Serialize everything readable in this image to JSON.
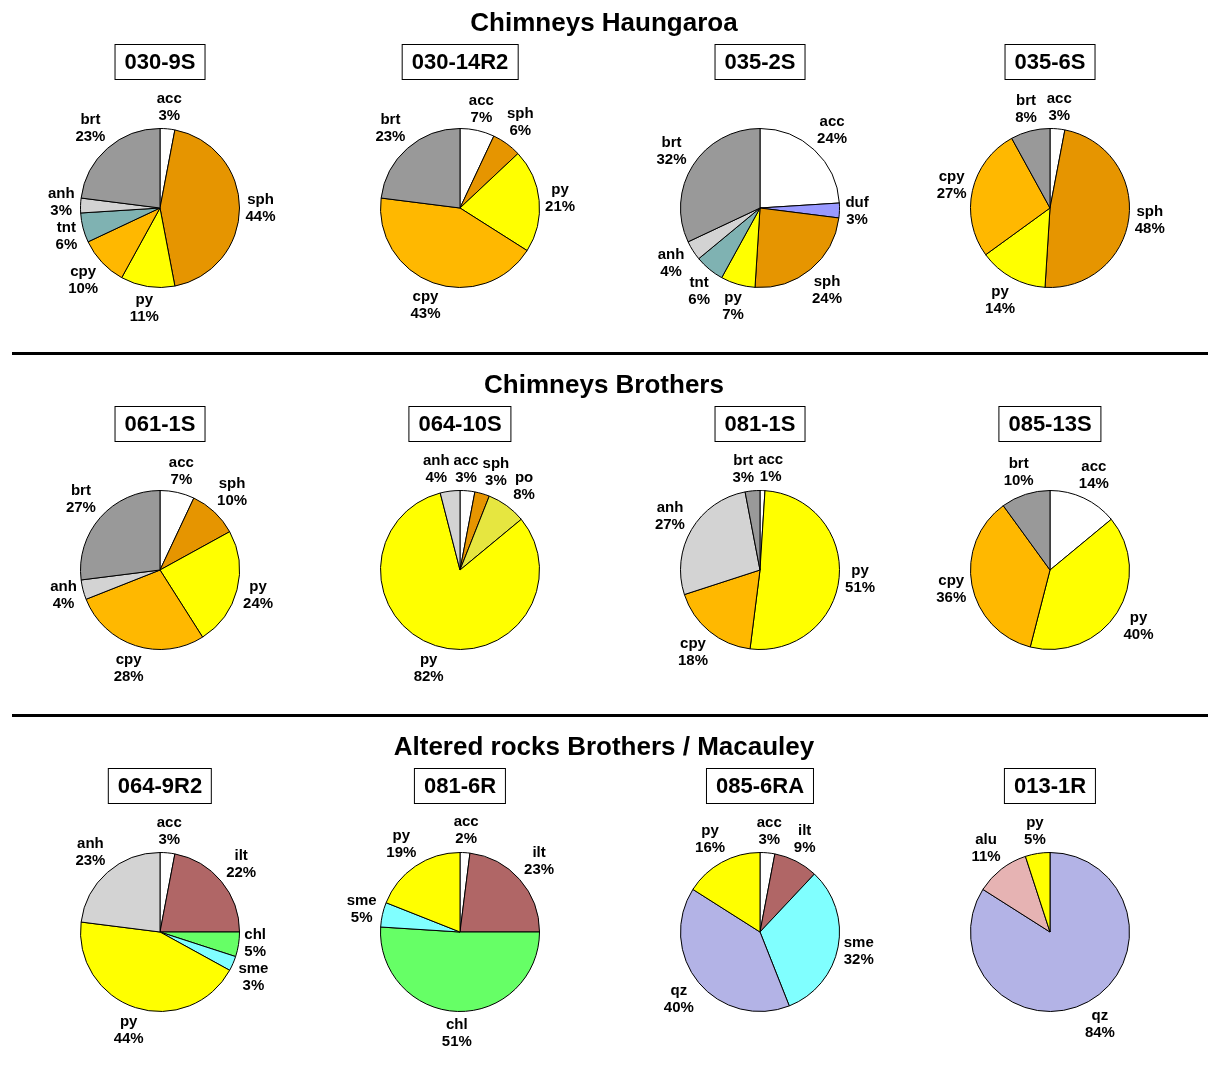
{
  "chart_data": [
    {
      "type": "pie",
      "title": "030-9S",
      "annotations": [
        "Chimneys Haungaroa"
      ],
      "categories": [
        "acc",
        "sph",
        "py",
        "cpy",
        "tnt",
        "anh",
        "brt"
      ],
      "values": [
        3,
        44,
        11,
        10,
        6,
        3,
        23
      ],
      "value_labels": [
        "3%",
        "44%",
        "11%",
        "10%",
        "6%",
        "3%",
        "23%"
      ],
      "colors": [
        "#ffffff",
        "#e69500",
        "#ffff00",
        "#ffb800",
        "#7fb2b2",
        "#d3d3d3",
        "#999999"
      ]
    },
    {
      "type": "pie",
      "title": "030-14R2",
      "categories": [
        "acc",
        "sph",
        "py",
        "cpy",
        "brt"
      ],
      "values": [
        7,
        6,
        21,
        43,
        23
      ],
      "value_labels": [
        "7%",
        "6%",
        "21%",
        "43%",
        "23%"
      ],
      "colors": [
        "#ffffff",
        "#e69500",
        "#ffff00",
        "#ffb800",
        "#999999"
      ]
    },
    {
      "type": "pie",
      "title": "035-2S",
      "categories": [
        "acc",
        "duf",
        "sph",
        "py",
        "tnt",
        "anh",
        "brt"
      ],
      "values": [
        24,
        3,
        24,
        7,
        6,
        4,
        32
      ],
      "value_labels": [
        "24%",
        "3%",
        "24%",
        "7%",
        "6%",
        "4%",
        "32%"
      ],
      "colors": [
        "#ffffff",
        "#9999ff",
        "#e69500",
        "#ffff00",
        "#7fb2b2",
        "#d3d3d3",
        "#999999"
      ]
    },
    {
      "type": "pie",
      "title": "035-6S",
      "categories": [
        "acc",
        "sph",
        "py",
        "cpy",
        "brt"
      ],
      "values": [
        3,
        48,
        14,
        27,
        8
      ],
      "value_labels": [
        "3%",
        "48%",
        "14%",
        "27%",
        "8%"
      ],
      "colors": [
        "#ffffff",
        "#e69500",
        "#ffff00",
        "#ffb800",
        "#999999"
      ]
    },
    {
      "type": "pie",
      "title": "061-1S",
      "annotations": [
        "Chimneys Brothers"
      ],
      "categories": [
        "acc",
        "sph",
        "py",
        "cpy",
        "anh",
        "brt"
      ],
      "values": [
        7,
        10,
        24,
        28,
        4,
        27
      ],
      "value_labels": [
        "7%",
        "10%",
        "24%",
        "28%",
        "4%",
        "27%"
      ],
      "colors": [
        "#ffffff",
        "#e69500",
        "#ffff00",
        "#ffb800",
        "#d3d3d3",
        "#999999"
      ]
    },
    {
      "type": "pie",
      "title": "064-10S",
      "categories": [
        "acc",
        "sph",
        "po",
        "py",
        "anh"
      ],
      "values": [
        3,
        3,
        8,
        82,
        4
      ],
      "value_labels": [
        "3%",
        "3%",
        "8%",
        "82%",
        "4%"
      ],
      "colors": [
        "#ffffff",
        "#e69500",
        "#e6e640",
        "#ffff00",
        "#d3d3d3"
      ]
    },
    {
      "type": "pie",
      "title": "081-1S",
      "categories": [
        "acc",
        "py",
        "cpy",
        "anh",
        "brt"
      ],
      "values": [
        1,
        51,
        18,
        27,
        3
      ],
      "value_labels": [
        "1%",
        "51%",
        "18%",
        "27%",
        "3%"
      ],
      "colors": [
        "#ffffff",
        "#ffff00",
        "#ffb800",
        "#d3d3d3",
        "#999999"
      ]
    },
    {
      "type": "pie",
      "title": "085-13S",
      "categories": [
        "acc",
        "py",
        "cpy",
        "brt"
      ],
      "values": [
        14,
        40,
        36,
        10
      ],
      "value_labels": [
        "14%",
        "40%",
        "36%",
        "10%"
      ],
      "colors": [
        "#ffffff",
        "#ffff00",
        "#ffb800",
        "#999999"
      ]
    },
    {
      "type": "pie",
      "title": "064-9R2",
      "annotations": [
        "Altered rocks Brothers / Macauley"
      ],
      "categories": [
        "acc",
        "ilt",
        "chl",
        "sme",
        "py",
        "anh"
      ],
      "values": [
        3,
        22,
        5,
        3,
        44,
        23
      ],
      "value_labels": [
        "3%",
        "22%",
        "5%",
        "3%",
        "44%",
        "23%"
      ],
      "colors": [
        "#ffffff",
        "#b06666",
        "#66ff66",
        "#80ffff",
        "#ffff00",
        "#d3d3d3"
      ]
    },
    {
      "type": "pie",
      "title": "081-6R",
      "categories": [
        "acc",
        "ilt",
        "chl",
        "sme",
        "py"
      ],
      "values": [
        2,
        23,
        51,
        5,
        19
      ],
      "value_labels": [
        "2%",
        "23%",
        "51%",
        "5%",
        "19%"
      ],
      "colors": [
        "#ffffff",
        "#b06666",
        "#66ff66",
        "#80ffff",
        "#ffff00"
      ]
    },
    {
      "type": "pie",
      "title": "085-6RA",
      "categories": [
        "acc",
        "ilt",
        "sme",
        "qz",
        "py"
      ],
      "values": [
        3,
        9,
        32,
        40,
        16
      ],
      "value_labels": [
        "3%",
        "9%",
        "32%",
        "40%",
        "16%"
      ],
      "colors": [
        "#ffffff",
        "#b06666",
        "#80ffff",
        "#b3b3e6",
        "#ffff00"
      ]
    },
    {
      "type": "pie",
      "title": "013-1R",
      "categories": [
        "qz",
        "alu",
        "py"
      ],
      "values": [
        84,
        11,
        5
      ],
      "value_labels": [
        "84%",
        "11%",
        "5%"
      ],
      "colors": [
        "#b3b3e6",
        "#e6b3b3",
        "#ffff00"
      ]
    }
  ]
}
